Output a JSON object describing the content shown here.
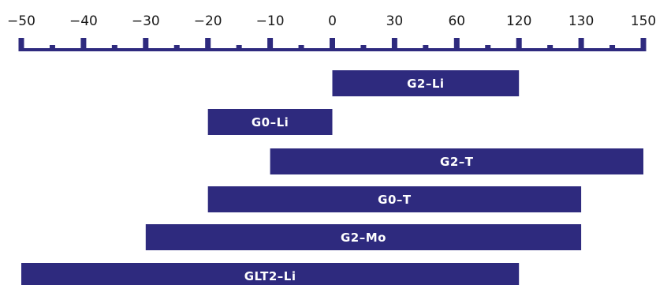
{
  "chart_data": {
    "type": "range-bar",
    "axis": {
      "tick_labels": [
        "−50",
        "−40",
        "−30",
        "−20",
        "−10",
        "0",
        "30",
        "60",
        "120",
        "130",
        "150"
      ]
    },
    "bar_color": "#2e2a7e",
    "ruler_color": "#2e2a7e",
    "text_color": "#1a1a1a",
    "bars": [
      {
        "label": "G2–Li",
        "start": "0",
        "end": "120"
      },
      {
        "label": "G0–Li",
        "start": "−20",
        "end": "0"
      },
      {
        "label": "G2–T",
        "start": "−10",
        "end": "150"
      },
      {
        "label": "G0–T",
        "start": "−20",
        "end": "130"
      },
      {
        "label": "G2–Mo",
        "start": "−30",
        "end": "130"
      },
      {
        "label": "GLT2–Li",
        "start": "−50",
        "end": "120"
      }
    ]
  }
}
